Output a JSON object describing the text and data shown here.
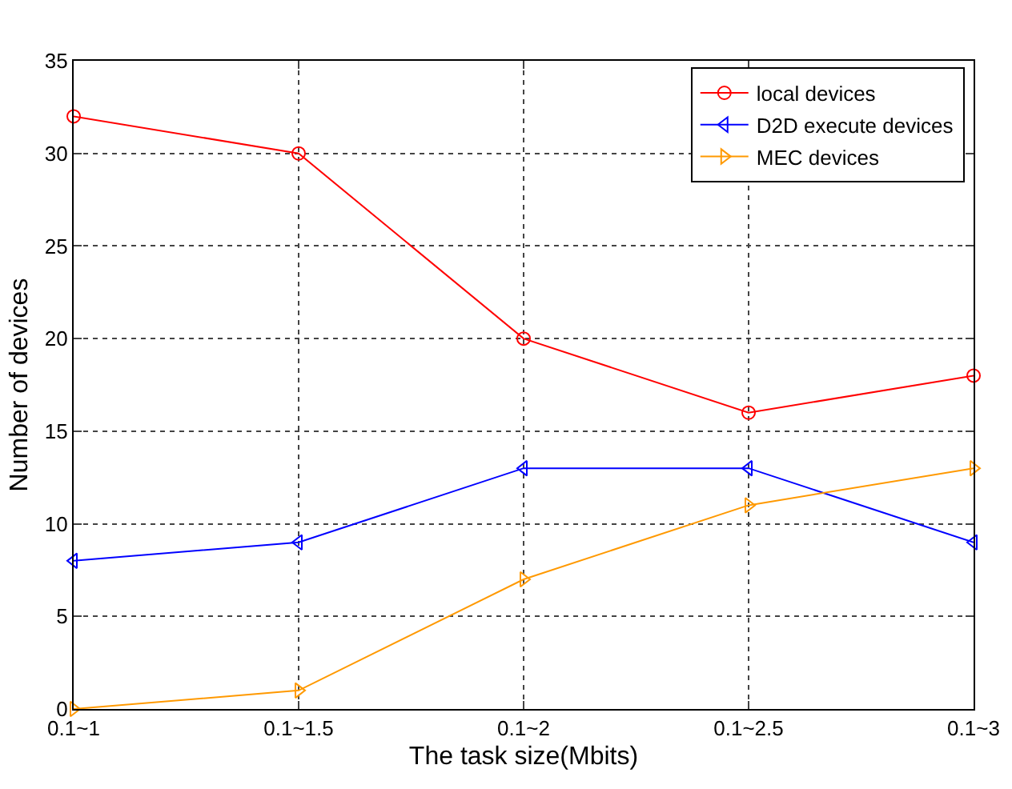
{
  "chart_data": {
    "type": "line",
    "xlabel": "The task size(Mbits)",
    "ylabel": "Number of devices",
    "categories": [
      "0.1~1",
      "0.1~1.5",
      "0.1~2",
      "0.1~2.5",
      "0.1~3"
    ],
    "series": [
      {
        "name": "local devices",
        "color": "#ff0000",
        "marker": "circle",
        "values": [
          32,
          30,
          20,
          16,
          18
        ]
      },
      {
        "name": "D2D execute devices",
        "color": "#0000ff",
        "marker": "triangle-left",
        "values": [
          8,
          9,
          13,
          13,
          9
        ]
      },
      {
        "name": "MEC devices",
        "color": "#ff9900",
        "marker": "triangle-right",
        "values": [
          0,
          1,
          7,
          11,
          13
        ]
      }
    ],
    "ylim": [
      0,
      35
    ],
    "yticks": [
      0,
      5,
      10,
      15,
      20,
      25,
      30,
      35
    ],
    "grid": true,
    "legend": "top right",
    "line_style": "solid"
  }
}
